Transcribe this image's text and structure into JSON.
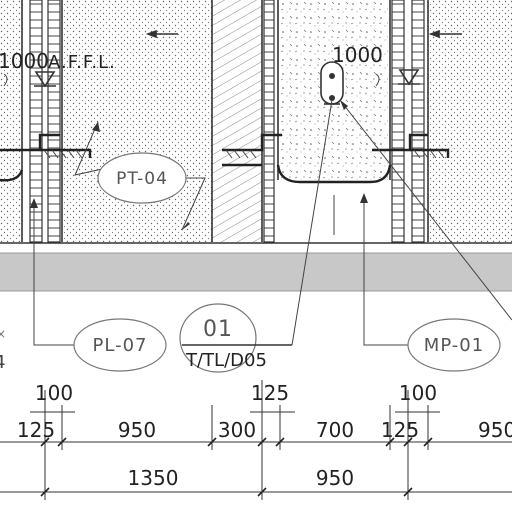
{
  "drawing": {
    "height_notes": [
      {
        "value": "1000",
        "suffix": "A.F.F.L."
      },
      {
        "value": "1000",
        "suffix": ""
      }
    ],
    "tags": {
      "pt": "PT-04",
      "pl": "PL-07",
      "mp": "MP-01"
    },
    "section_ref": {
      "number": "01",
      "sheet": "T/TL/D05"
    },
    "edge_mark": "4",
    "dimensions": {
      "upper_row": [
        "100",
        "125",
        "100"
      ],
      "middle_row": [
        "125",
        "950",
        "300",
        "700",
        "125",
        "950"
      ],
      "lower_row": [
        "1350",
        "950"
      ]
    }
  },
  "colors": {
    "line": "#333333",
    "tag_outline": "#777777",
    "floor_band": "#c8c8c8"
  }
}
